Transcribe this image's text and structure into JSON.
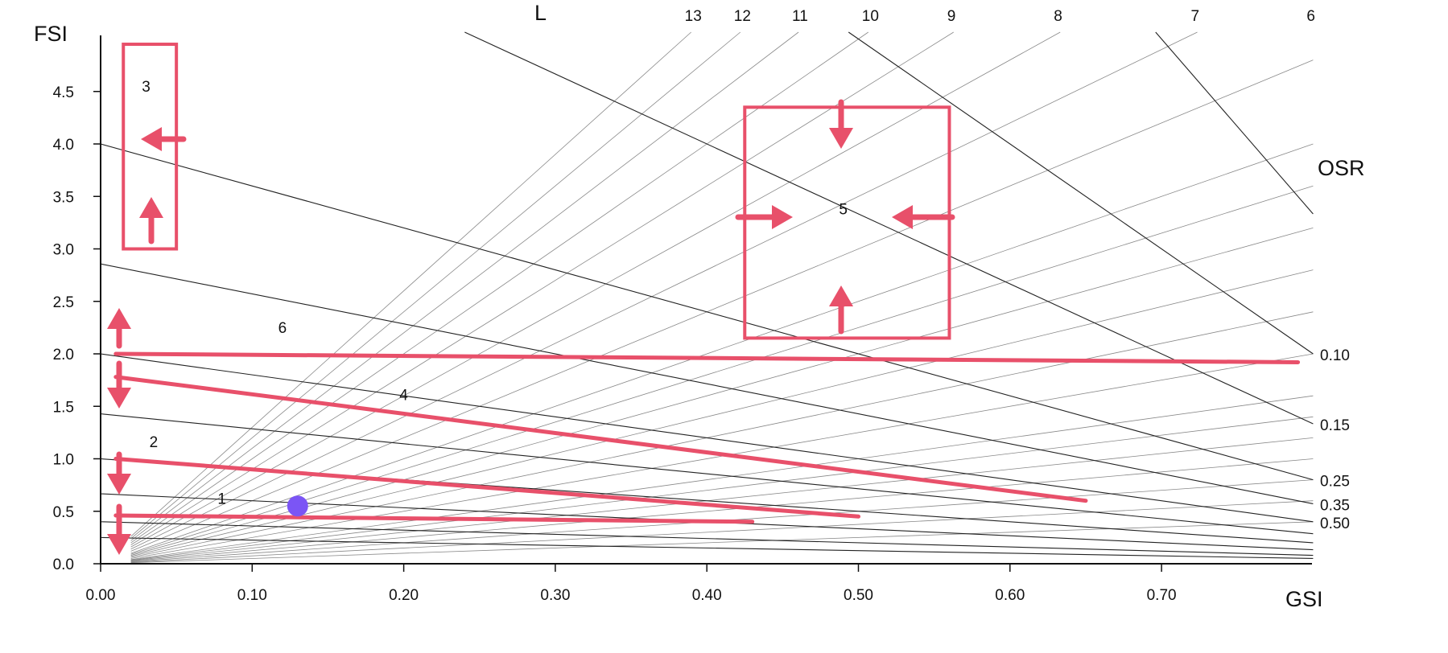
{
  "chart_data": {
    "type": "line",
    "title": "",
    "xlabel": "GSI",
    "ylabel": "FSI",
    "secondary_labels": {
      "l_family": "L",
      "osr_family": "OSR"
    },
    "xlim": [
      0,
      0.8
    ],
    "ylim": [
      0,
      4.5
    ],
    "x_ticks": [
      "0.00",
      "0.10",
      "0.20",
      "0.30",
      "0.40",
      "0.50",
      "0.60",
      "0.70"
    ],
    "x_tick_values": [
      0,
      0.1,
      0.2,
      0.3,
      0.4,
      0.5,
      0.6,
      0.7
    ],
    "y_ticks": [
      "0.0",
      "0.5",
      "1.0",
      "1.5",
      "2.0",
      "2.5",
      "3.0",
      "3.5",
      "4.0",
      "4.5"
    ],
    "y_tick_values": [
      0,
      0.5,
      1.0,
      1.5,
      2.0,
      2.5,
      3.0,
      3.5,
      4.0,
      4.5
    ],
    "l_lines": [
      {
        "label": "13",
        "l": 13
      },
      {
        "label": "12",
        "l": 12
      },
      {
        "label": "11",
        "l": 11
      },
      {
        "label": "10",
        "l": 10
      },
      {
        "label": "9",
        "l": 9
      },
      {
        "label": "8",
        "l": 8
      },
      {
        "label": "7",
        "l": 7
      },
      {
        "label": "6",
        "l": 6
      }
    ],
    "l_lines_unlabeled": [
      5,
      4.5,
      4,
      3.5,
      3,
      2.5,
      2,
      1.75,
      1.5,
      1.25,
      1,
      0.75,
      0.5
    ],
    "osr_lines": [
      {
        "label": "0.10",
        "osr": 0.1
      },
      {
        "label": "0.15",
        "osr": 0.15
      },
      {
        "label": "0.25",
        "osr": 0.25
      },
      {
        "label": "0.35",
        "osr": 0.35
      },
      {
        "label": "0.50",
        "osr": 0.5
      }
    ],
    "osr_lines_unlabeled": [
      0.06,
      0.7,
      1.0,
      1.5,
      2.5,
      4.0
    ],
    "annotations": {
      "regions": [
        {
          "label": "1",
          "x": 0.08,
          "y": 0.57
        },
        {
          "label": "2",
          "x": 0.035,
          "y": 1.11
        },
        {
          "label": "3",
          "x": 0.03,
          "y": 4.5
        },
        {
          "label": "4",
          "x": 0.2,
          "y": 1.56
        },
        {
          "label": "5",
          "x": 0.49,
          "y": 3.33
        },
        {
          "label": "6",
          "x": 0.12,
          "y": 2.2
        }
      ],
      "red_lines": [
        {
          "x": [
            0.01,
            0.43
          ],
          "y": [
            0.46,
            0.4
          ]
        },
        {
          "x": [
            0.01,
            0.5
          ],
          "y": [
            1.0,
            0.45
          ]
        },
        {
          "x": [
            0.01,
            0.65
          ],
          "y": [
            1.78,
            0.6
          ]
        },
        {
          "x": [
            0.01,
            0.79
          ],
          "y": [
            2.0,
            1.92
          ]
        }
      ],
      "red_boxes": [
        {
          "x": [
            0.015,
            0.05
          ],
          "y": [
            3.0,
            4.95
          ]
        },
        {
          "x": [
            0.425,
            0.56
          ],
          "y": [
            2.15,
            4.35
          ]
        }
      ],
      "marker": {
        "x": 0.13,
        "y": 0.55,
        "color": "#7b55f5"
      }
    },
    "colors": {
      "annotation": "#e8506a",
      "marker": "#7b55f5",
      "grid": "#555555"
    }
  }
}
